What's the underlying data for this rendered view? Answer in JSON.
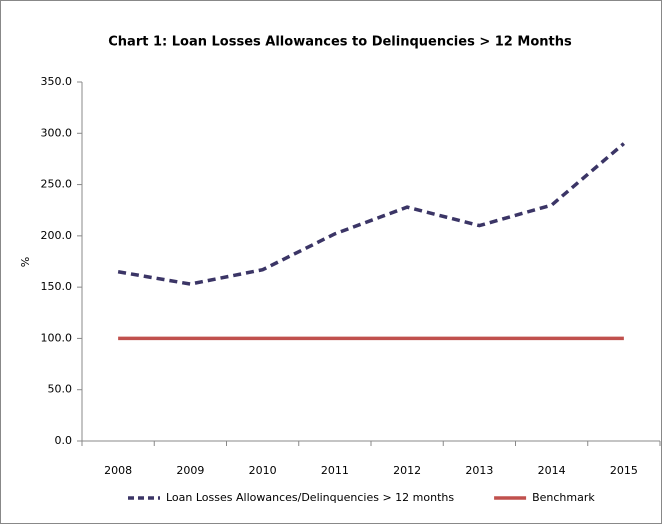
{
  "chart_data": {
    "type": "line",
    "title": "Chart 1: Loan Losses Allowances  to Delinquencies > 12 Months",
    "ylabel": "%",
    "categories": [
      "2008",
      "2009",
      "2010",
      "2011",
      "2012",
      "2013",
      "2014",
      "2015"
    ],
    "series": [
      {
        "name": "Loan Losses Allowances/Delinquencies > 12 months",
        "color": "#3b3566",
        "dash": true,
        "values": [
          165,
          153,
          167,
          202,
          228,
          210,
          230,
          290
        ]
      },
      {
        "name": "Benchmark",
        "color": "#c0504d",
        "dash": false,
        "values": [
          100,
          100,
          100,
          100,
          100,
          100,
          100,
          100
        ]
      }
    ],
    "ylim": [
      0,
      350
    ],
    "yticks": [
      {
        "value": 0,
        "label": "0.0"
      },
      {
        "value": 50,
        "label": "50.0"
      },
      {
        "value": 100,
        "label": "100.0"
      },
      {
        "value": 150,
        "label": "150.0"
      },
      {
        "value": 200,
        "label": "200.0"
      },
      {
        "value": 250,
        "label": "250.0"
      },
      {
        "value": 300,
        "label": "300.0"
      },
      {
        "value": 350,
        "label": "350.0"
      }
    ],
    "legend": "bottom",
    "grid": false
  }
}
